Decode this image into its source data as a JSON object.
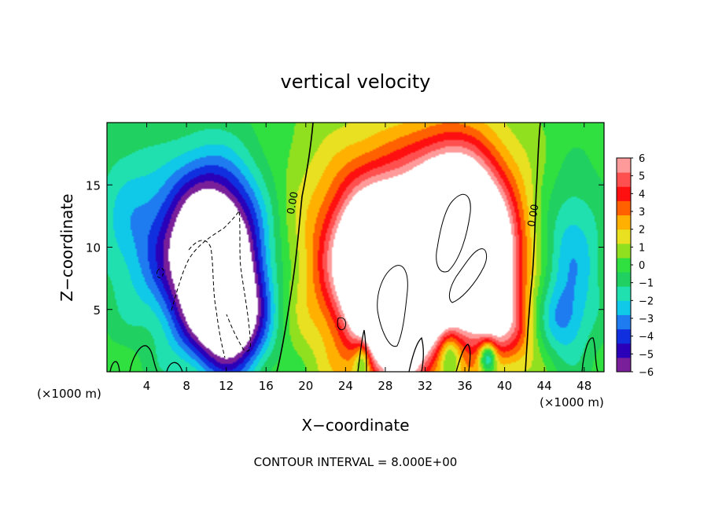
{
  "chart_data": {
    "type": "heatmap",
    "title": "vertical velocity",
    "xlabel": "X−coordinate",
    "ylabel": "Z−coordinate",
    "x_unit_left": "(×1000 m)",
    "x_unit_right": "(×1000 m)",
    "footer": "CONTOUR INTERVAL = 8.000E+00",
    "xlim": [
      0,
      50
    ],
    "ylim": [
      0,
      20
    ],
    "x_ticks": [
      4,
      8,
      12,
      16,
      20,
      24,
      28,
      32,
      36,
      40,
      44,
      48
    ],
    "x_tick_labels": [
      "4",
      "8",
      "12",
      "16",
      "20",
      "24",
      "28",
      "32",
      "36",
      "40",
      "44",
      "48"
    ],
    "y_ticks": [
      5,
      10,
      15
    ],
    "y_tick_labels": [
      "5",
      "10",
      "15"
    ],
    "contour_labels": [
      {
        "text": "0.00",
        "x": 19.0,
        "y": 13.5
      },
      {
        "text": "0.00",
        "x": 43.2,
        "y": 12.5
      }
    ],
    "colorbar": {
      "min": -6,
      "max": 6,
      "tick_values": [
        6,
        5,
        4,
        3,
        2,
        1,
        0,
        -1,
        -2,
        -3,
        -4,
        -5,
        -6
      ],
      "tick_labels": [
        "6",
        "5",
        "4",
        "3",
        "2",
        "1",
        "0",
        "−1",
        "−2",
        "−3",
        "−4",
        "−5",
        "−6"
      ],
      "colors": [
        "#7a1f9a",
        "#2a00b8",
        "#1030e0",
        "#1e7cf0",
        "#10c8e8",
        "#20e0b0",
        "#20d060",
        "#30e040",
        "#90e020",
        "#e8e020",
        "#ffb000",
        "#ff6000",
        "#ff1010",
        "#ff5050",
        "#ff9a9a"
      ]
    },
    "features": [
      {
        "name": "downdraft-core",
        "x": 10.5,
        "y": 9.5,
        "sx": 3.6,
        "sy": 4.8,
        "value": -11
      },
      {
        "name": "downdraft-lower",
        "x": 12.5,
        "y": 4.0,
        "sx": 2.5,
        "sy": 3.0,
        "value": -6
      },
      {
        "name": "updraft-left",
        "x": 26.5,
        "y": 8.5,
        "sx": 2.6,
        "sy": 4.0,
        "value": 8
      },
      {
        "name": "updraft-center",
        "x": 29.5,
        "y": 5.5,
        "sx": 2.2,
        "sy": 4.2,
        "value": 10
      },
      {
        "name": "updraft-upper",
        "x": 35.0,
        "y": 11.5,
        "sx": 3.0,
        "sy": 4.2,
        "value": 10
      },
      {
        "name": "updraft-right",
        "x": 37.5,
        "y": 8.5,
        "sx": 2.2,
        "sy": 3.0,
        "value": 7
      },
      {
        "name": "updraft-broad",
        "x": 31.5,
        "y": 9.5,
        "sx": 8.0,
        "sy": 6.5,
        "value": 6
      },
      {
        "name": "updraft-low-right",
        "x": 40.0,
        "y": 3.5,
        "sx": 2.0,
        "sy": 2.0,
        "value": 3
      },
      {
        "name": "cool-left-edge",
        "x": 2.0,
        "y": 12.0,
        "sx": 2.5,
        "sy": 5.0,
        "value": -2
      },
      {
        "name": "cool-right",
        "x": 46.5,
        "y": 9.0,
        "sx": 2.5,
        "sy": 5.0,
        "value": -3.5
      },
      {
        "name": "cool-right-low",
        "x": 45.5,
        "y": 4.0,
        "sx": 1.8,
        "sy": 2.0,
        "value": -2
      },
      {
        "name": "surface-blob-1",
        "x": 25.7,
        "y": 1.0,
        "sx": 0.6,
        "sy": 1.2,
        "value": -3
      },
      {
        "name": "surface-blob-2",
        "x": 34.5,
        "y": 1.5,
        "sx": 0.8,
        "sy": 1.3,
        "value": -3
      },
      {
        "name": "surface-blob-3",
        "x": 38.3,
        "y": 1.2,
        "sx": 0.6,
        "sy": 0.9,
        "value": -5
      }
    ]
  }
}
